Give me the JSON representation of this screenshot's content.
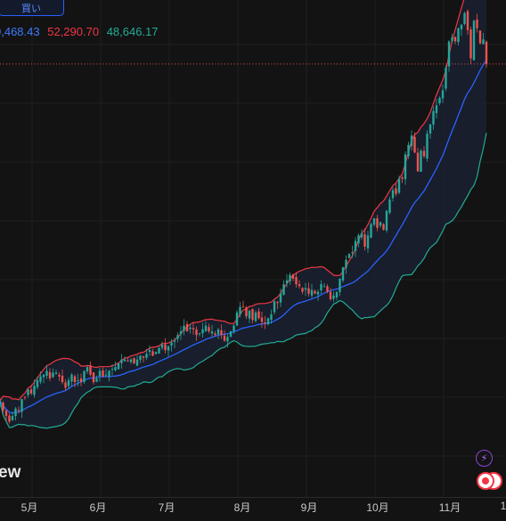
{
  "header": {
    "buy_label": "買い"
  },
  "legend": {
    "basis": "0,468.43",
    "upper": "52,290.70",
    "lower": "48,646.17"
  },
  "watermark": "ew",
  "buttons": {
    "flash_icon": "lightning-icon",
    "record_icon": "record-icon"
  },
  "colors": {
    "background": "#131313",
    "up": "#26a69a",
    "down": "#ef5350",
    "basis": "#2962ff",
    "upper": "#f23645",
    "lower": "#22ab94",
    "band_fill": "#1a2130"
  },
  "chart_data": {
    "type": "candlestick",
    "indicator": "bollinger-bands",
    "x_tick_labels": [
      "5月",
      "6月",
      "7月",
      "8月",
      "9月",
      "10月",
      "11月",
      "1"
    ],
    "close_series": [
      32100,
      31600,
      31300,
      31000,
      31300,
      31700,
      31600,
      32200,
      32300,
      32700,
      32500,
      32900,
      33200,
      33400,
      33500,
      33700,
      33300,
      33600,
      33600,
      33400,
      33100,
      32800,
      33200,
      33500,
      33100,
      33200,
      33100,
      33700,
      33900,
      33500,
      33100,
      33300,
      33700,
      33400,
      33500,
      33700,
      33800,
      33900,
      34100,
      34300,
      34300,
      34200,
      34300,
      34100,
      34300,
      34500,
      34400,
      34600,
      34800,
      34500,
      34700,
      34900,
      35100,
      34800,
      35000,
      35200,
      35300,
      35600,
      35800,
      36100,
      35800,
      36000,
      35900,
      35600,
      35700,
      35900,
      36100,
      35800,
      35800,
      35600,
      35900,
      35600,
      35300,
      35500,
      35800,
      36100,
      36800,
      37100,
      37100,
      36600,
      36900,
      36400,
      36800,
      36500,
      36300,
      36200,
      36500,
      36700,
      37400,
      37300,
      37800,
      38300,
      38500,
      38800,
      38600,
      38300,
      38200,
      37900,
      38100,
      37800,
      38000,
      37800,
      37900,
      38300,
      38200,
      37900,
      37500,
      37700,
      37900,
      38600,
      39200,
      39600,
      39900,
      40000,
      40600,
      40900,
      41000,
      40300,
      40900,
      41500,
      41800,
      41300,
      41600,
      41200,
      42200,
      42800,
      43300,
      43100,
      43900,
      43900,
      45200,
      45700,
      46200,
      45300,
      44300,
      45400,
      45100,
      46300,
      46800,
      47500,
      47800,
      48200,
      48600,
      49800,
      51200,
      51400,
      51200,
      51900,
      52100,
      52700,
      51800,
      50300,
      52300,
      51900,
      51100,
      51300,
      50000
    ],
    "bands": {
      "basis_name": "basis",
      "upper_name": "upper",
      "lower_name": "lower",
      "period": 20,
      "multiplier": 2
    },
    "y_range": [
      27000,
      53400
    ],
    "grid": true,
    "reference_line": 50000
  }
}
